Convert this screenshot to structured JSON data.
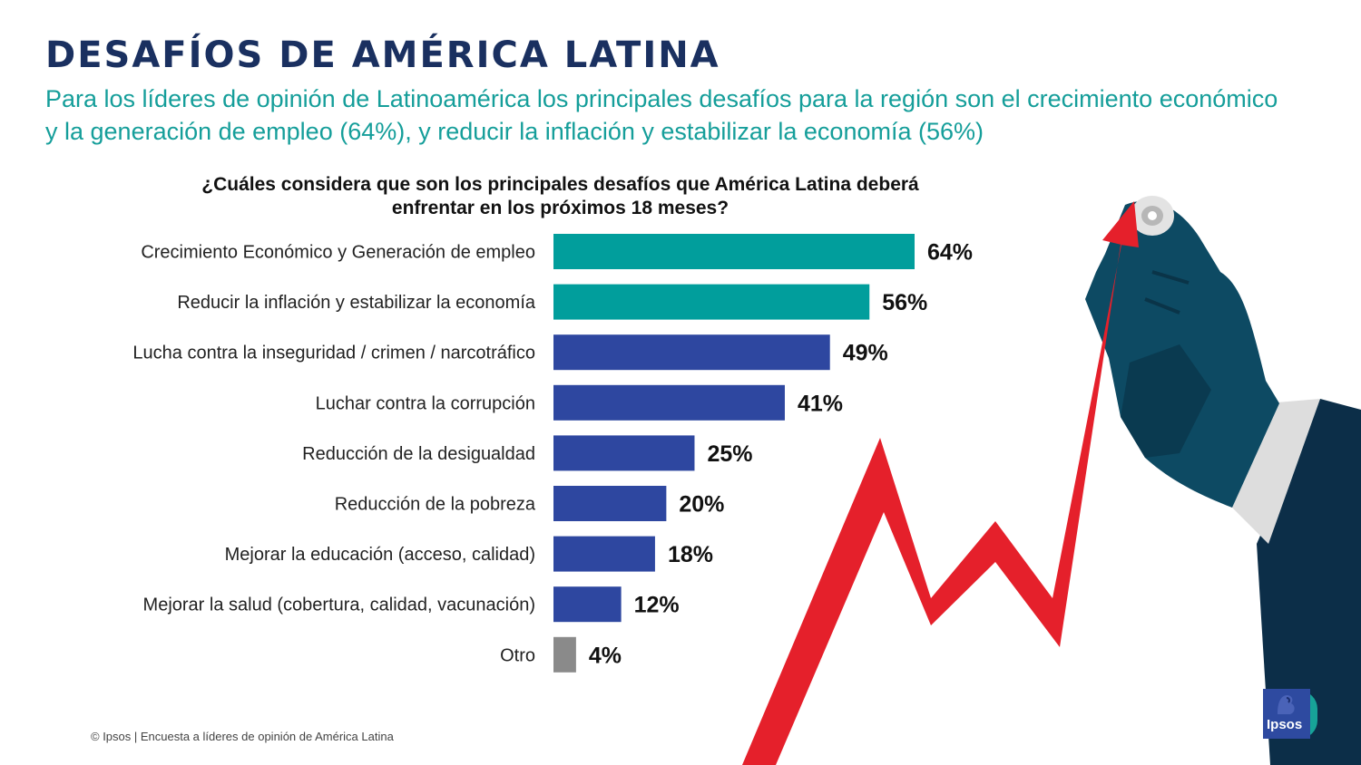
{
  "title": "DESAFÍOS DE AMÉRICA LATINA",
  "subtitle": "Para los líderes de opinión de Latinoamérica los principales desafíos para la región son el crecimiento económico y la generación de empleo (64%), y reducir la inflación y estabilizar la economía (56%)",
  "question": "¿Cuáles considera que son los principales desafíos que América Latina deberá enfrentar en los próximos 18 meses?",
  "footer": "© Ipsos | Encuesta a líderes de opinión de América Latina",
  "logo_text": "Ipsos",
  "colors": {
    "title": "#1a3060",
    "subtitle": "#159e9a",
    "teal": "#019e9c",
    "blue": "#2e47a0",
    "gray": "#8a8a8a",
    "arrow": "#e5202b",
    "hand": "#0d4a63"
  },
  "chart_data": {
    "type": "bar",
    "orientation": "horizontal",
    "categories": [
      "Crecimiento Económico y Generación de empleo",
      "Reducir la inflación y estabilizar la economía",
      "Lucha contra la inseguridad / crimen / narcotráfico",
      "Luchar contra la corrupción",
      "Reducción de la desigualdad",
      "Reducción de la pobreza",
      "Mejorar la educación (acceso, calidad)",
      "Mejorar la salud (cobertura, calidad, vacunación)",
      "Otro"
    ],
    "values": [
      64,
      56,
      49,
      41,
      25,
      20,
      18,
      12,
      4
    ],
    "value_labels": [
      "64%",
      "56%",
      "49%",
      "41%",
      "25%",
      "20%",
      "18%",
      "12%",
      "4%"
    ],
    "bar_colors": [
      "#019e9c",
      "#019e9c",
      "#2e47a0",
      "#2e47a0",
      "#2e47a0",
      "#2e47a0",
      "#2e47a0",
      "#2e47a0",
      "#8a8a8a"
    ],
    "unit": "%",
    "xlim": [
      0,
      64
    ],
    "grid": false,
    "legend": "none"
  }
}
